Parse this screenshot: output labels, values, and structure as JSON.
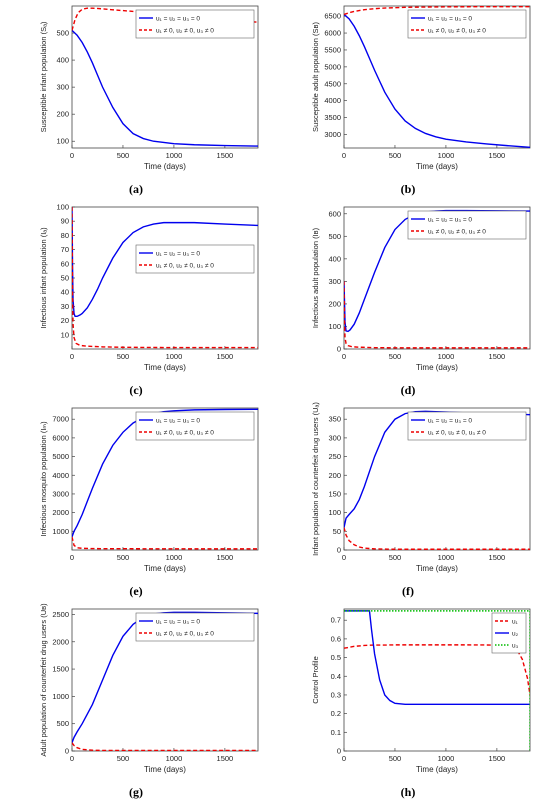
{
  "chart_data": [
    {
      "type": "line",
      "panel_label": "(a)",
      "ylabel": "Susceptible infant population (Sₐ)",
      "xlabel": "Time (days)",
      "xlim": [
        0,
        1825
      ],
      "ylim": [
        75,
        600
      ],
      "xticks": [
        0,
        500,
        1000,
        1500
      ],
      "yticks": [
        100,
        200,
        300,
        400,
        500
      ],
      "legend": "upper-right",
      "series": [
        {
          "name": "u₁ = u₂ = u₃ = 0",
          "color": "#0000ee",
          "dash": false,
          "x": [
            0,
            50,
            100,
            150,
            200,
            250,
            300,
            400,
            500,
            600,
            700,
            800,
            1000,
            1200,
            1500,
            1825
          ],
          "y": [
            510,
            492,
            465,
            430,
            390,
            345,
            300,
            225,
            165,
            128,
            110,
            100,
            91,
            87,
            84,
            82
          ]
        },
        {
          "name": "u₁ ≠ 0, u₂ ≠ 0, u₃ ≠ 0",
          "color": "#ee0000",
          "dash": true,
          "x": [
            0,
            30,
            60,
            100,
            150,
            200,
            250,
            400,
            600,
            800,
            1000,
            1200,
            1500,
            1825
          ],
          "y": [
            510,
            550,
            575,
            588,
            592,
            592,
            591,
            586,
            580,
            573,
            566,
            559,
            550,
            540
          ]
        }
      ]
    },
    {
      "type": "line",
      "panel_label": "(b)",
      "ylabel": "Susceptible adult population (Sʙ)",
      "xlabel": "Time (days)",
      "xlim": [
        0,
        1825
      ],
      "ylim": [
        2600,
        6800
      ],
      "xticks": [
        0,
        500,
        1000,
        1500
      ],
      "yticks": [
        3000,
        3500,
        4000,
        4500,
        5000,
        5500,
        6000,
        6500
      ],
      "legend": "upper-right",
      "series": [
        {
          "name": "u₁ = u₂ = u₃ = 0",
          "color": "#0000ee",
          "dash": false,
          "x": [
            0,
            50,
            100,
            150,
            200,
            250,
            300,
            400,
            500,
            600,
            700,
            800,
            900,
            1000,
            1200,
            1400,
            1600,
            1825
          ],
          "y": [
            6550,
            6420,
            6200,
            5920,
            5600,
            5250,
            4900,
            4250,
            3750,
            3400,
            3180,
            3030,
            2930,
            2860,
            2780,
            2720,
            2670,
            2620
          ]
        },
        {
          "name": "u₁ ≠ 0, u₂ ≠ 0, u₃ ≠ 0",
          "color": "#ee0000",
          "dash": true,
          "x": [
            0,
            50,
            100,
            200,
            300,
            400,
            500,
            600,
            800,
            1000,
            1200,
            1500,
            1825
          ],
          "y": [
            6550,
            6600,
            6640,
            6690,
            6720,
            6740,
            6750,
            6760,
            6770,
            6775,
            6778,
            6780,
            6780
          ]
        }
      ]
    },
    {
      "type": "line",
      "panel_label": "(c)",
      "ylabel": "Infectious infant population (Iₐ)",
      "xlabel": "Time (days)",
      "xlim": [
        0,
        1825
      ],
      "ylim": [
        0,
        100
      ],
      "xticks": [
        0,
        500,
        1000,
        1500
      ],
      "yticks": [
        10,
        20,
        30,
        40,
        50,
        60,
        70,
        80,
        90,
        100
      ],
      "legend": "center-right",
      "series": [
        {
          "name": "u₁ = u₂ = u₃ = 0",
          "color": "#0000ee",
          "dash": false,
          "x": [
            0,
            5,
            10,
            20,
            30,
            50,
            80,
            100,
            150,
            200,
            250,
            300,
            400,
            500,
            600,
            700,
            800,
            900,
            1000,
            1200,
            1500,
            1825
          ],
          "y": [
            100,
            60,
            35,
            25,
            23,
            23,
            24,
            25,
            29,
            35,
            42,
            50,
            64,
            75,
            82,
            86,
            88,
            89,
            89,
            89,
            88,
            87
          ]
        },
        {
          "name": "u₁ ≠ 0, u₂ ≠ 0, u₃ ≠ 0",
          "color": "#ee0000",
          "dash": true,
          "x": [
            0,
            5,
            10,
            20,
            40,
            80,
            150,
            300,
            500,
            1000,
            1500,
            1825
          ],
          "y": [
            100,
            40,
            18,
            8,
            4,
            2.5,
            2,
            1.5,
            1.2,
            1,
            1,
            1
          ]
        }
      ]
    },
    {
      "type": "line",
      "panel_label": "(d)",
      "ylabel": "Infectious adult population (Iʙ)",
      "xlabel": "Time (days)",
      "xlim": [
        0,
        1825
      ],
      "ylim": [
        0,
        630
      ],
      "xticks": [
        0,
        500,
        1000,
        1500
      ],
      "yticks": [
        0,
        100,
        200,
        300,
        400,
        500,
        600
      ],
      "legend": "upper-right",
      "series": [
        {
          "name": "u₁ = u₂ = u₃ = 0",
          "color": "#0000ee",
          "dash": false,
          "x": [
            0,
            10,
            20,
            40,
            60,
            100,
            150,
            200,
            300,
            400,
            500,
            600,
            700,
            800,
            900,
            1000,
            1200,
            1500,
            1825
          ],
          "y": [
            300,
            120,
            80,
            78,
            85,
            110,
            160,
            220,
            340,
            450,
            530,
            575,
            598,
            608,
            612,
            614,
            614,
            613,
            612
          ]
        },
        {
          "name": "u₁ ≠ 0, u₂ ≠ 0, u₃ ≠ 0",
          "color": "#ee0000",
          "dash": true,
          "x": [
            0,
            5,
            10,
            20,
            40,
            80,
            150,
            300,
            600,
            1000,
            1500,
            1825
          ],
          "y": [
            300,
            120,
            50,
            25,
            15,
            10,
            8,
            6,
            5,
            5,
            5,
            5
          ]
        }
      ]
    },
    {
      "type": "line",
      "panel_label": "(e)",
      "ylabel": "Infectious mosquito population (Iₘ)",
      "xlabel": "Time (days)",
      "xlim": [
        0,
        1825
      ],
      "ylim": [
        0,
        7600
      ],
      "xticks": [
        0,
        500,
        1000,
        1500
      ],
      "yticks": [
        1000,
        2000,
        3000,
        4000,
        5000,
        6000,
        7000
      ],
      "legend": "upper-right",
      "series": [
        {
          "name": "u₁ = u₂ = u₃ = 0",
          "color": "#0000ee",
          "dash": false,
          "x": [
            0,
            20,
            50,
            100,
            150,
            200,
            300,
            400,
            500,
            600,
            700,
            800,
            900,
            1000,
            1200,
            1500,
            1825
          ],
          "y": [
            700,
            1000,
            1300,
            1900,
            2600,
            3300,
            4600,
            5600,
            6300,
            6800,
            7100,
            7300,
            7400,
            7450,
            7500,
            7520,
            7530
          ]
        },
        {
          "name": "u₁ ≠ 0, u₂ ≠ 0, u₃ ≠ 0",
          "color": "#ee0000",
          "dash": true,
          "x": [
            0,
            20,
            50,
            100,
            200,
            400,
            800,
            1200,
            1825
          ],
          "y": [
            700,
            250,
            120,
            90,
            75,
            70,
            65,
            60,
            60
          ]
        }
      ]
    },
    {
      "type": "line",
      "panel_label": "(f)",
      "ylabel": "Infant population of counterfeit drug users (Uₐ)",
      "xlabel": "Time (days)",
      "xlim": [
        0,
        1825
      ],
      "ylim": [
        0,
        380
      ],
      "xticks": [
        0,
        500,
        1000,
        1500
      ],
      "yticks": [
        0,
        50,
        100,
        150,
        200,
        250,
        300,
        350
      ],
      "legend": "upper-right",
      "series": [
        {
          "name": "u₁ = u₂ = u₃ = 0",
          "color": "#0000ee",
          "dash": false,
          "x": [
            0,
            20,
            50,
            100,
            150,
            200,
            300,
            400,
            500,
            600,
            700,
            800,
            900,
            1000,
            1200,
            1500,
            1825
          ],
          "y": [
            60,
            85,
            95,
            110,
            135,
            170,
            250,
            315,
            350,
            365,
            370,
            371,
            370,
            369,
            367,
            365,
            362
          ]
        },
        {
          "name": "u₁ ≠ 0, u₂ ≠ 0, u₃ ≠ 0",
          "color": "#ee0000",
          "dash": true,
          "x": [
            0,
            20,
            50,
            100,
            150,
            200,
            300,
            500,
            800,
            1200,
            1825
          ],
          "y": [
            60,
            40,
            25,
            14,
            8,
            5,
            3,
            2,
            2,
            2,
            2
          ]
        }
      ]
    },
    {
      "type": "line",
      "panel_label": "(g)",
      "ylabel": "Adult population of counterfeit drug users (Uʙ)",
      "xlabel": "Time (days)",
      "xlim": [
        0,
        1825
      ],
      "ylim": [
        0,
        2600
      ],
      "xticks": [
        0,
        500,
        1000,
        1500
      ],
      "yticks": [
        0,
        500,
        1000,
        1500,
        2000,
        2500
      ],
      "legend": "upper-right",
      "series": [
        {
          "name": "u₁ = u₂ = u₃ = 0",
          "color": "#0000ee",
          "dash": false,
          "x": [
            0,
            20,
            50,
            100,
            200,
            300,
            400,
            500,
            600,
            700,
            800,
            900,
            1000,
            1200,
            1500,
            1825
          ],
          "y": [
            150,
            250,
            350,
            500,
            850,
            1300,
            1750,
            2100,
            2320,
            2450,
            2510,
            2530,
            2540,
            2540,
            2530,
            2520
          ]
        },
        {
          "name": "u₁ ≠ 0, u₂ ≠ 0, u₃ ≠ 0",
          "color": "#ee0000",
          "dash": true,
          "x": [
            0,
            20,
            50,
            100,
            200,
            300,
            500,
            800,
            1200,
            1825
          ],
          "y": [
            150,
            100,
            60,
            30,
            15,
            10,
            10,
            10,
            10,
            10
          ]
        }
      ]
    },
    {
      "type": "line",
      "panel_label": "(h)",
      "ylabel": "Control Profile",
      "xlabel": "Time (days)",
      "xlim": [
        0,
        1825
      ],
      "ylim": [
        0,
        0.76
      ],
      "xticks": [
        0,
        500,
        1000,
        1500
      ],
      "yticks": [
        0,
        0.1,
        0.2,
        0.3,
        0.4,
        0.5,
        0.6,
        0.7
      ],
      "legend": "upper-right",
      "series": [
        {
          "name": "u₁",
          "color": "#ee0000",
          "dash": true,
          "x": [
            0,
            50,
            100,
            200,
            300,
            400,
            500,
            800,
            1200,
            1500,
            1650,
            1700,
            1750,
            1800,
            1825
          ],
          "y": [
            0.55,
            0.555,
            0.56,
            0.565,
            0.567,
            0.567,
            0.568,
            0.568,
            0.568,
            0.567,
            0.56,
            0.54,
            0.49,
            0.39,
            0.3
          ]
        },
        {
          "name": "u₂",
          "color": "#0000ee",
          "dash": false,
          "x": [
            0,
            250,
            270,
            300,
            350,
            400,
            450,
            500,
            600,
            800,
            1200,
            1825
          ],
          "y": [
            0.75,
            0.75,
            0.65,
            0.52,
            0.38,
            0.3,
            0.27,
            0.255,
            0.25,
            0.25,
            0.25,
            0.25
          ]
        },
        {
          "name": "u₃",
          "color": "#00bb00",
          "dash": "dot",
          "x": [
            0,
            1800,
            1825,
            1825
          ],
          "y": [
            0.75,
            0.75,
            0.75,
            0
          ]
        }
      ]
    }
  ]
}
